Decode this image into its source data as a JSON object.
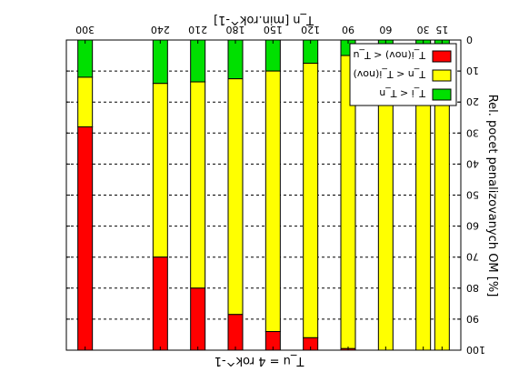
{
  "chart_data": {
    "type": "bar",
    "stacked": true,
    "orientation": "mirrored (rotated 180 degrees)",
    "xlabel": "T_n [min.rok^-1]",
    "top_label": "T_u = 4 rok^-1",
    "ylabel": "Rel. pocet penalizovanych OM [%]",
    "x": [
      15,
      30,
      60,
      90,
      120,
      150,
      180,
      210,
      240,
      300
    ],
    "xticks": [
      15,
      30,
      60,
      90,
      120,
      150,
      180,
      210,
      240,
      300
    ],
    "xlim": [
      0,
      315
    ],
    "ylim": [
      0,
      100
    ],
    "yticks": [
      0,
      10,
      20,
      30,
      40,
      50,
      60,
      70,
      80,
      90,
      100
    ],
    "grid": "horizontal dashed",
    "legend_position": "bottom-left",
    "series": [
      {
        "name": "T_i < T_n",
        "color": "#00e000",
        "values": [
          2,
          2,
          3.5,
          5,
          7.5,
          10,
          12.5,
          13.5,
          14,
          12
        ]
      },
      {
        "name": "T_n < T_i(nov)",
        "color": "#ffff00",
        "values": [
          98,
          98,
          96.5,
          94.5,
          88.5,
          84,
          76,
          66.5,
          56,
          16
        ]
      },
      {
        "name": "T_i(nov) < T_u",
        "color": "#ff0000",
        "values": [
          0,
          0,
          0,
          0.5,
          4,
          6,
          11.5,
          20,
          30,
          72
        ]
      }
    ]
  }
}
